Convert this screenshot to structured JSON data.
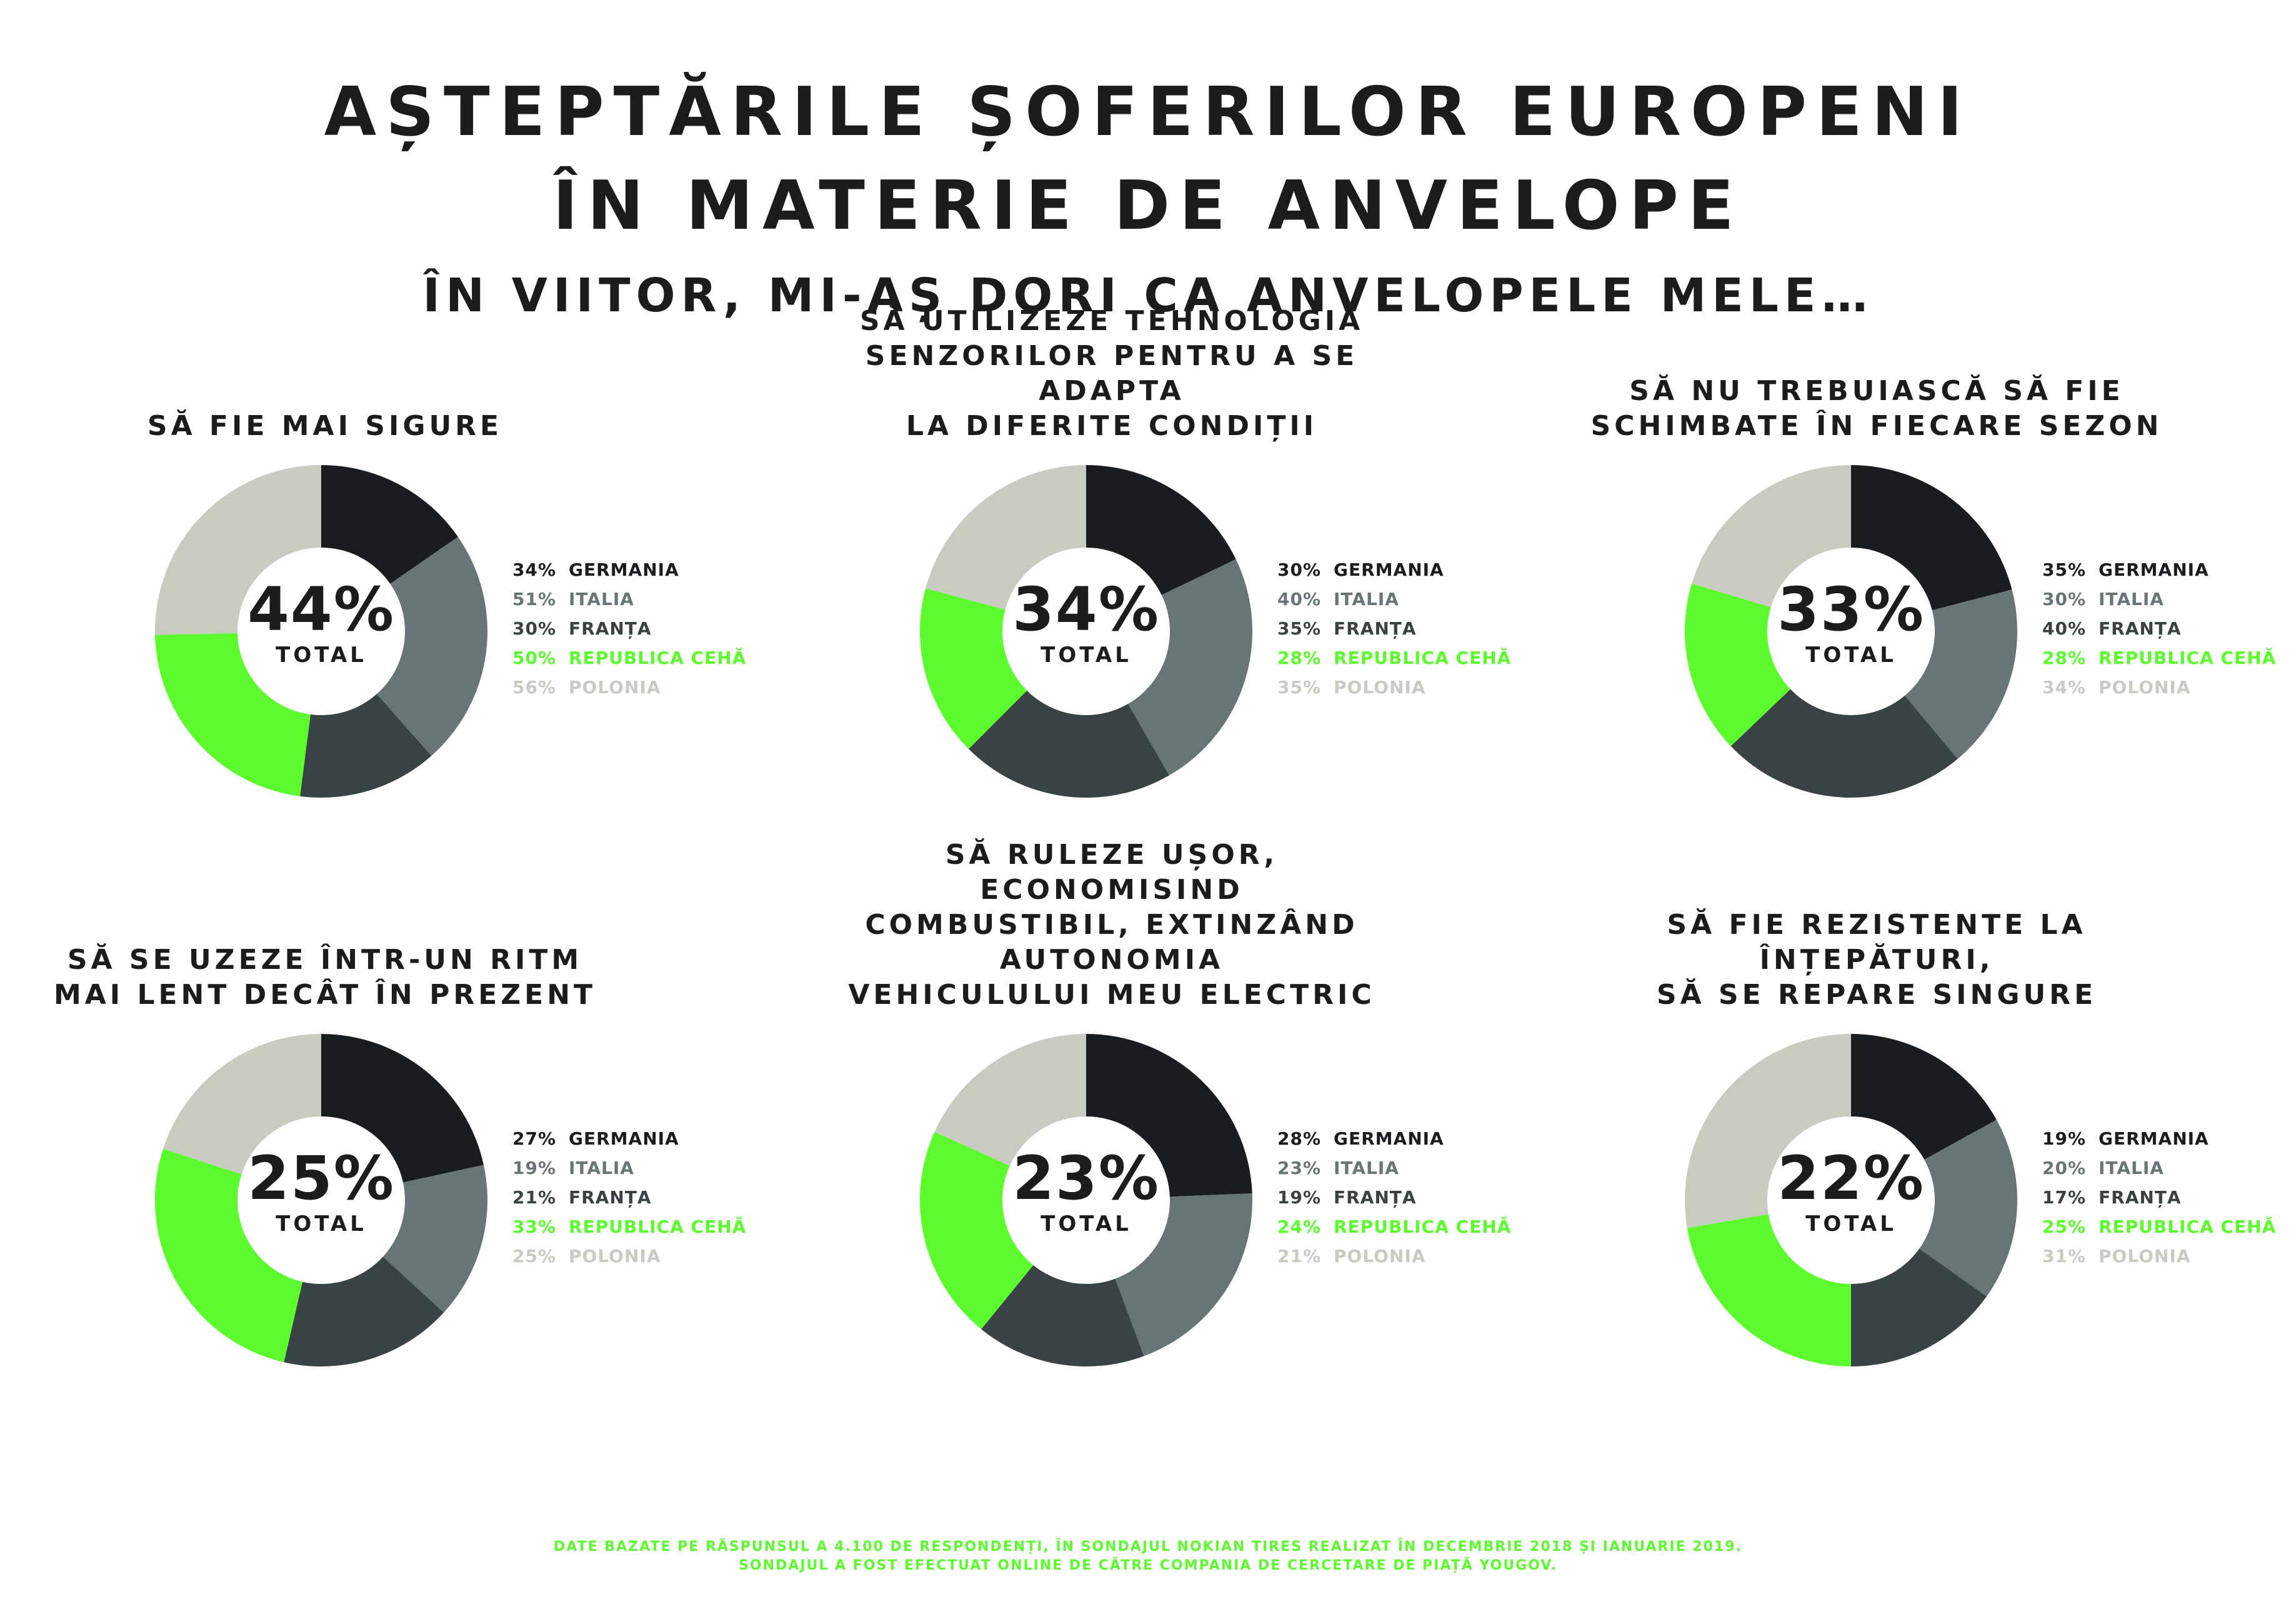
{
  "title": {
    "line1": "AȘTEPTĂRILE ȘOFERILOR EUROPENI",
    "line2": "ÎN MATERIE DE ANVELOPE"
  },
  "subtitle": "ÎN VIITOR, MI-AȘ DORI CA ANVELOPELE MELE…",
  "total_label": "TOTAL",
  "colors": {
    "GERMANIA": "#1a1d20",
    "ITALIA": "#677577",
    "FRANȚA": "#394343",
    "REPUBLICA CEHĂ": "#5cfb2e",
    "POLONIA": "#c8cbbf",
    "footer": "#5cfb2e"
  },
  "chart_data": [
    {
      "type": "pie",
      "title": [
        "SĂ FIE MAI SIGURE"
      ],
      "total": "44%",
      "categories": [
        "GERMANIA",
        "ITALIA",
        "FRANȚA",
        "REPUBLICA CEHĂ",
        "POLONIA"
      ],
      "values": [
        34,
        51,
        30,
        50,
        56
      ],
      "labels": [
        "34%",
        "51%",
        "30%",
        "50%",
        "56%"
      ]
    },
    {
      "type": "pie",
      "title": [
        "SĂ UTILIZEZE TEHNOLOGIA",
        "SENZORILOR PENTRU A SE ADAPTA",
        "LA DIFERITE CONDIȚII"
      ],
      "total": "34%",
      "categories": [
        "GERMANIA",
        "ITALIA",
        "FRANȚA",
        "REPUBLICA CEHĂ",
        "POLONIA"
      ],
      "values": [
        30,
        40,
        35,
        28,
        35
      ],
      "labels": [
        "30%",
        "40%",
        "35%",
        "28%",
        "35%"
      ]
    },
    {
      "type": "pie",
      "title": [
        "SĂ NU TREBUIASCĂ SĂ FIE",
        "SCHIMBATE ÎN FIECARE SEZON"
      ],
      "total": "33%",
      "categories": [
        "GERMANIA",
        "ITALIA",
        "FRANȚA",
        "REPUBLICA CEHĂ",
        "POLONIA"
      ],
      "values": [
        35,
        30,
        40,
        28,
        34
      ],
      "labels": [
        "35%",
        "30%",
        "40%",
        "28%",
        "34%"
      ]
    },
    {
      "type": "pie",
      "title": [
        "SĂ SE UZEZE ÎNTR-UN RITM",
        "MAI LENT DECÂT ÎN PREZENT"
      ],
      "total": "25%",
      "categories": [
        "GERMANIA",
        "ITALIA",
        "FRANȚA",
        "REPUBLICA CEHĂ",
        "POLONIA"
      ],
      "values": [
        27,
        19,
        21,
        33,
        25
      ],
      "labels": [
        "27%",
        "19%",
        "21%",
        "33%",
        "25%"
      ]
    },
    {
      "type": "pie",
      "title": [
        "SĂ RULEZE UȘOR, ECONOMISIND",
        "COMBUSTIBIL, EXTINZÂND AUTONOMIA",
        "VEHICULULUI MEU ELECTRIC"
      ],
      "total": "23%",
      "categories": [
        "GERMANIA",
        "ITALIA",
        "FRANȚA",
        "REPUBLICA CEHĂ",
        "POLONIA"
      ],
      "values": [
        28,
        23,
        19,
        24,
        21
      ],
      "labels": [
        "28%",
        "23%",
        "19%",
        "24%",
        "21%"
      ]
    },
    {
      "type": "pie",
      "title": [
        "SĂ FIE REZISTENTE LA ÎNȚEPĂTURI,",
        "SĂ SE REPARE SINGURE"
      ],
      "total": "22%",
      "categories": [
        "GERMANIA",
        "ITALIA",
        "FRANȚA",
        "REPUBLICA CEHĂ",
        "POLONIA"
      ],
      "values": [
        19,
        20,
        17,
        25,
        31
      ],
      "labels": [
        "19%",
        "20%",
        "17%",
        "25%",
        "31%"
      ]
    }
  ],
  "footer": {
    "line1": "DATE BAZATE PE RĂSPUNSUL A 4.100 DE RESPONDENȚI, ÎN SONDAJUL NOKIAN TIRES REALIZAT ÎN DECEMBRIE 2018 ȘI IANUARIE 2019.",
    "line2": "SONDAJUL A FOST EFECTUAT ONLINE DE CĂTRE COMPANIA DE CERCETARE DE PIAȚĂ YOUGOV."
  }
}
